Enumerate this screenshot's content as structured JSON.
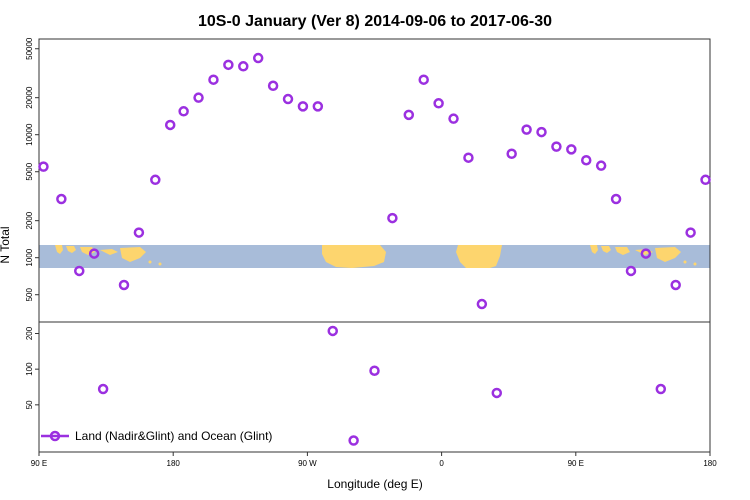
{
  "chart_data": {
    "type": "scatter",
    "title": "10S-0 January (Ver 8)   2014-09-06 to 2017-06-30",
    "xlabel": "Longitude (deg E)",
    "ylabel": "N Total",
    "x_ticks": [
      {
        "value": 90,
        "label": "90 E"
      },
      {
        "value": 180,
        "label": "180"
      },
      {
        "value": 270,
        "label": "90 W"
      },
      {
        "value": 360,
        "label": "0"
      },
      {
        "value": 450,
        "label": "90 E"
      },
      {
        "value": 540,
        "label": "180"
      }
    ],
    "xlim": [
      90,
      540
    ],
    "y_scale": "log",
    "upper_panel": {
      "ylim": [
        300,
        60000
      ],
      "y_ticks": [
        "500",
        "1000",
        "2000",
        "5000",
        "10000",
        "20000",
        "50000"
      ]
    },
    "lower_panel": {
      "ylim": [
        20,
        250
      ],
      "y_ticks": [
        "50",
        "100",
        "200"
      ]
    },
    "series": [
      {
        "name": "Land (Nadir&Glint) and Ocean (Glint)",
        "color": "#9b30e0",
        "x": [
          93,
          105,
          117,
          127,
          133,
          147,
          157,
          168,
          178,
          187,
          197,
          207,
          217,
          227,
          237,
          247,
          257,
          267,
          277,
          287,
          301,
          315,
          327,
          338,
          348,
          358,
          368,
          378,
          387,
          397,
          407,
          417,
          427,
          437,
          447,
          457,
          467,
          477,
          487,
          497,
          507,
          517,
          527,
          537
        ],
        "y": [
          5500,
          3000,
          780,
          1080,
          68,
          600,
          1600,
          4300,
          12000,
          15500,
          20000,
          28000,
          37000,
          36000,
          42000,
          25000,
          19500,
          17000,
          17000,
          210,
          25,
          97,
          2100,
          14500,
          28000,
          18000,
          13500,
          6500,
          420,
          63,
          7000,
          11000,
          10500,
          8000,
          7600,
          6200,
          5600,
          3000,
          780,
          1080,
          68,
          600,
          1600,
          4300
        ]
      }
    ],
    "background": "world map land/ocean band",
    "grid": false,
    "legend_position": "bottom-left"
  },
  "colors": {
    "marker": "#9b30e0",
    "ocean": "#a8bcd9",
    "land": "#fdd56e"
  }
}
